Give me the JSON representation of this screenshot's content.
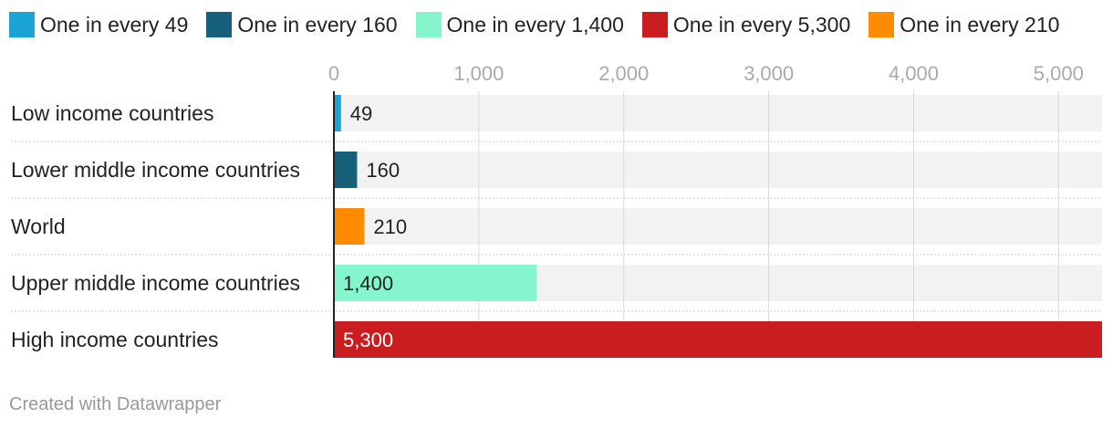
{
  "legend": [
    {
      "label": "One in every 49",
      "color": "#1aa3d3"
    },
    {
      "label": "One in every 160",
      "color": "#17607a"
    },
    {
      "label": "One in every 1,400",
      "color": "#84f5cd"
    },
    {
      "label": "One in every 5,300",
      "color": "#c91d1f"
    },
    {
      "label": "One in every 210",
      "color": "#ff8c00"
    }
  ],
  "chart_data": {
    "type": "bar",
    "orientation": "horizontal",
    "categories": [
      "Low income countries",
      "Lower middle income countries",
      "World",
      "Upper middle income countries",
      "High income countries"
    ],
    "values": [
      49,
      160,
      210,
      1400,
      5300
    ],
    "value_labels": [
      "49",
      "160",
      "210",
      "1,400",
      "5,300"
    ],
    "bar_colors": [
      "#1aa3d3",
      "#17607a",
      "#ff8c00",
      "#84f5cd",
      "#c91d1f"
    ],
    "xlim": [
      0,
      5300
    ],
    "ticks": [
      0,
      1000,
      2000,
      3000,
      4000,
      5000
    ],
    "tick_labels": [
      "0",
      "1,000",
      "2,000",
      "3,000",
      "4,000",
      "5,000"
    ],
    "grid": true,
    "legend_position": "top"
  },
  "footer": {
    "credit": "Created with Datawrapper"
  }
}
